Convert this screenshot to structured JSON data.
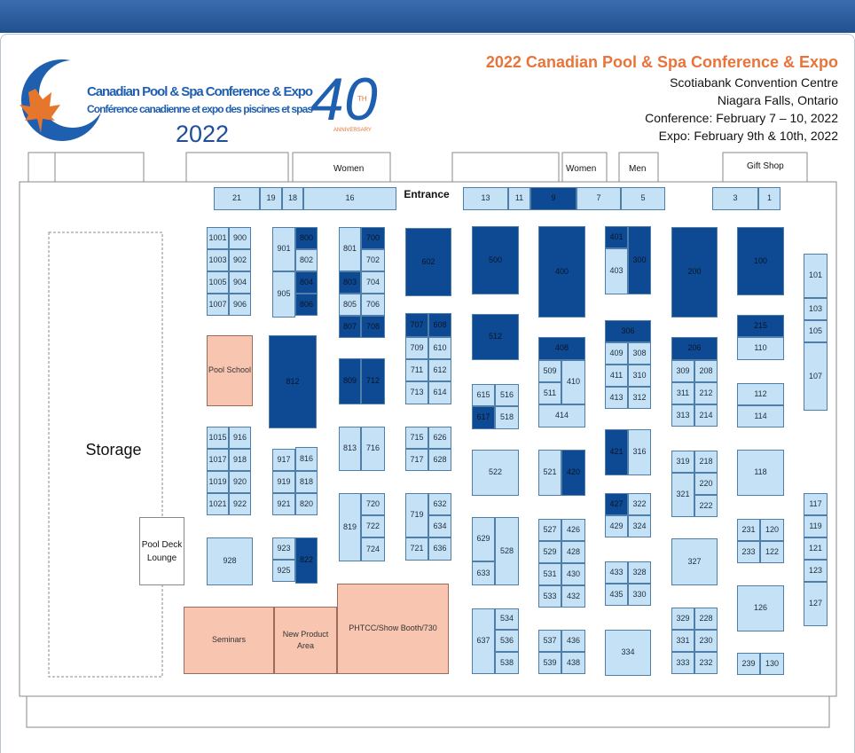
{
  "header": {
    "title": "2022 Canadian Pool & Spa Conference & Expo",
    "lines": [
      "Scotiabank Convention Centre",
      "Niagara Falls, Ontario",
      "Conference: February 7 – 10, 2022",
      "Expo: February 9th & 10th, 2022"
    ]
  },
  "logo": {
    "name": "Canadian Pool & Spa Conference & Expo",
    "name_fr": "Conférence canadienne et expo des piscines et spas",
    "year": "2022",
    "number": "40",
    "suffix": "TH",
    "anniversary": "ANNIVERSARY"
  },
  "facilities": {
    "women_1": "Women",
    "women_2": "Women",
    "men": "Men",
    "gift_shop": "Gift Shop",
    "entrance": "Entrance",
    "storage": "Storage"
  },
  "spaces": [
    "21",
    "19",
    "18",
    "16",
    "13",
    "11",
    "9",
    "7",
    "5",
    "3",
    "1",
    "1001",
    "900",
    "1003",
    "902",
    "1005",
    "904",
    "1007",
    "906",
    "Pool School",
    "1015",
    "916",
    "1017",
    "918",
    "1019",
    "920",
    "1021",
    "922",
    "928",
    "901",
    "905",
    "800",
    "802",
    "804",
    "806",
    "812",
    "917",
    "816",
    "919",
    "818",
    "921",
    "820",
    "923",
    "925",
    "822",
    "801",
    "803",
    "805",
    "700",
    "702",
    "704",
    "706",
    "807",
    "708",
    "809",
    "712",
    "813",
    "716",
    "819",
    "720",
    "722",
    "724",
    "PHTCC/Show Booth/730",
    "602",
    "707",
    "608",
    "709",
    "610",
    "711",
    "612",
    "713",
    "614",
    "715",
    "626",
    "717",
    "628",
    "719",
    "632",
    "634",
    "721",
    "636",
    "500",
    "512",
    "615",
    "516",
    "617",
    "518",
    "522",
    "629",
    "633",
    "528",
    "637",
    "534",
    "536",
    "538",
    "400",
    "408",
    "509",
    "511",
    "410",
    "414",
    "521",
    "420",
    "527",
    "426",
    "529",
    "428",
    "531",
    "430",
    "533",
    "432",
    "537",
    "436",
    "539",
    "438",
    "401",
    "403",
    "300",
    "306",
    "409",
    "308",
    "411",
    "310",
    "413",
    "312",
    "421",
    "316",
    "427",
    "322",
    "429",
    "324",
    "433",
    "328",
    "435",
    "330",
    "334",
    "200",
    "206",
    "309",
    "208",
    "311",
    "212",
    "313",
    "214",
    "319",
    "321",
    "218",
    "220",
    "222",
    "327",
    "329",
    "228",
    "331",
    "230",
    "333",
    "232",
    "100",
    "215",
    "110",
    "112",
    "114",
    "118",
    "231",
    "120",
    "233",
    "122",
    "126",
    "239",
    "130",
    "101",
    "103",
    "105",
    "107",
    "117",
    "119",
    "121",
    "123",
    "127",
    "Pool Deck Lounge",
    "Seminars",
    "New Product Area"
  ]
}
